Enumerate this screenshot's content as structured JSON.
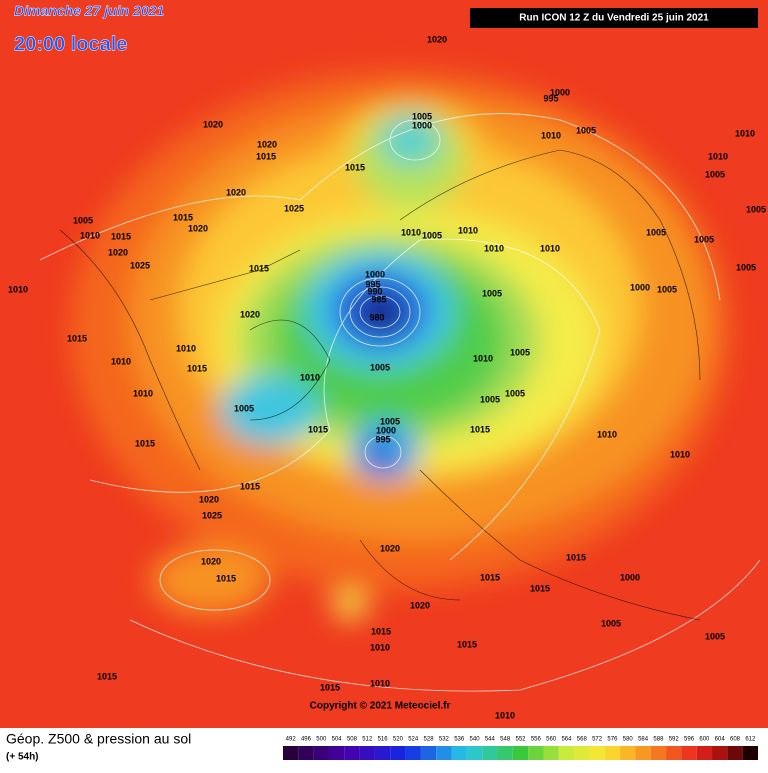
{
  "header": {
    "date": "Dimanche 27 juin 2021",
    "time": "20:00 locale",
    "run": "Run ICON 12 Z du Vendredi 25 juin 2021"
  },
  "footer": {
    "title": "Géop. Z500 & pression au sol",
    "lead": "(+ 54h)",
    "copyright": "Copyright © 2021 Meteociel.fr"
  },
  "legend": {
    "values": [
      492,
      496,
      500,
      504,
      508,
      512,
      516,
      520,
      524,
      528,
      532,
      536,
      540,
      544,
      548,
      552,
      556,
      560,
      564,
      568,
      572,
      576,
      580,
      584,
      588,
      592,
      596,
      600,
      604,
      608,
      612
    ]
  },
  "map": {
    "isobar_labels": [
      1020,
      1000,
      995,
      1005,
      1000,
      1010,
      1005,
      1010,
      1020,
      1020,
      1015,
      1015,
      1010,
      1005,
      1020,
      1025,
      1005,
      1005,
      1015,
      1020,
      1010,
      1015,
      1010,
      1005,
      1010,
      1005,
      1005,
      1020,
      1025,
      1010,
      1010,
      1015,
      1005,
      1000,
      995,
      990,
      985,
      980,
      1005,
      1010,
      1000,
      1005,
      1020,
      1015,
      1010,
      1005,
      1010,
      1010,
      1015,
      1005,
      1010,
      1010,
      1005,
      1005,
      1005,
      1015,
      1005,
      1000,
      995,
      1015,
      1010,
      1015,
      1010,
      1015,
      1020,
      1025,
      1020,
      1015,
      1020,
      1015,
      1000,
      1015,
      1015,
      1020,
      1015,
      1010,
      1015,
      1005,
      1015,
      1015,
      1010,
      1010,
      1005
    ]
  }
}
